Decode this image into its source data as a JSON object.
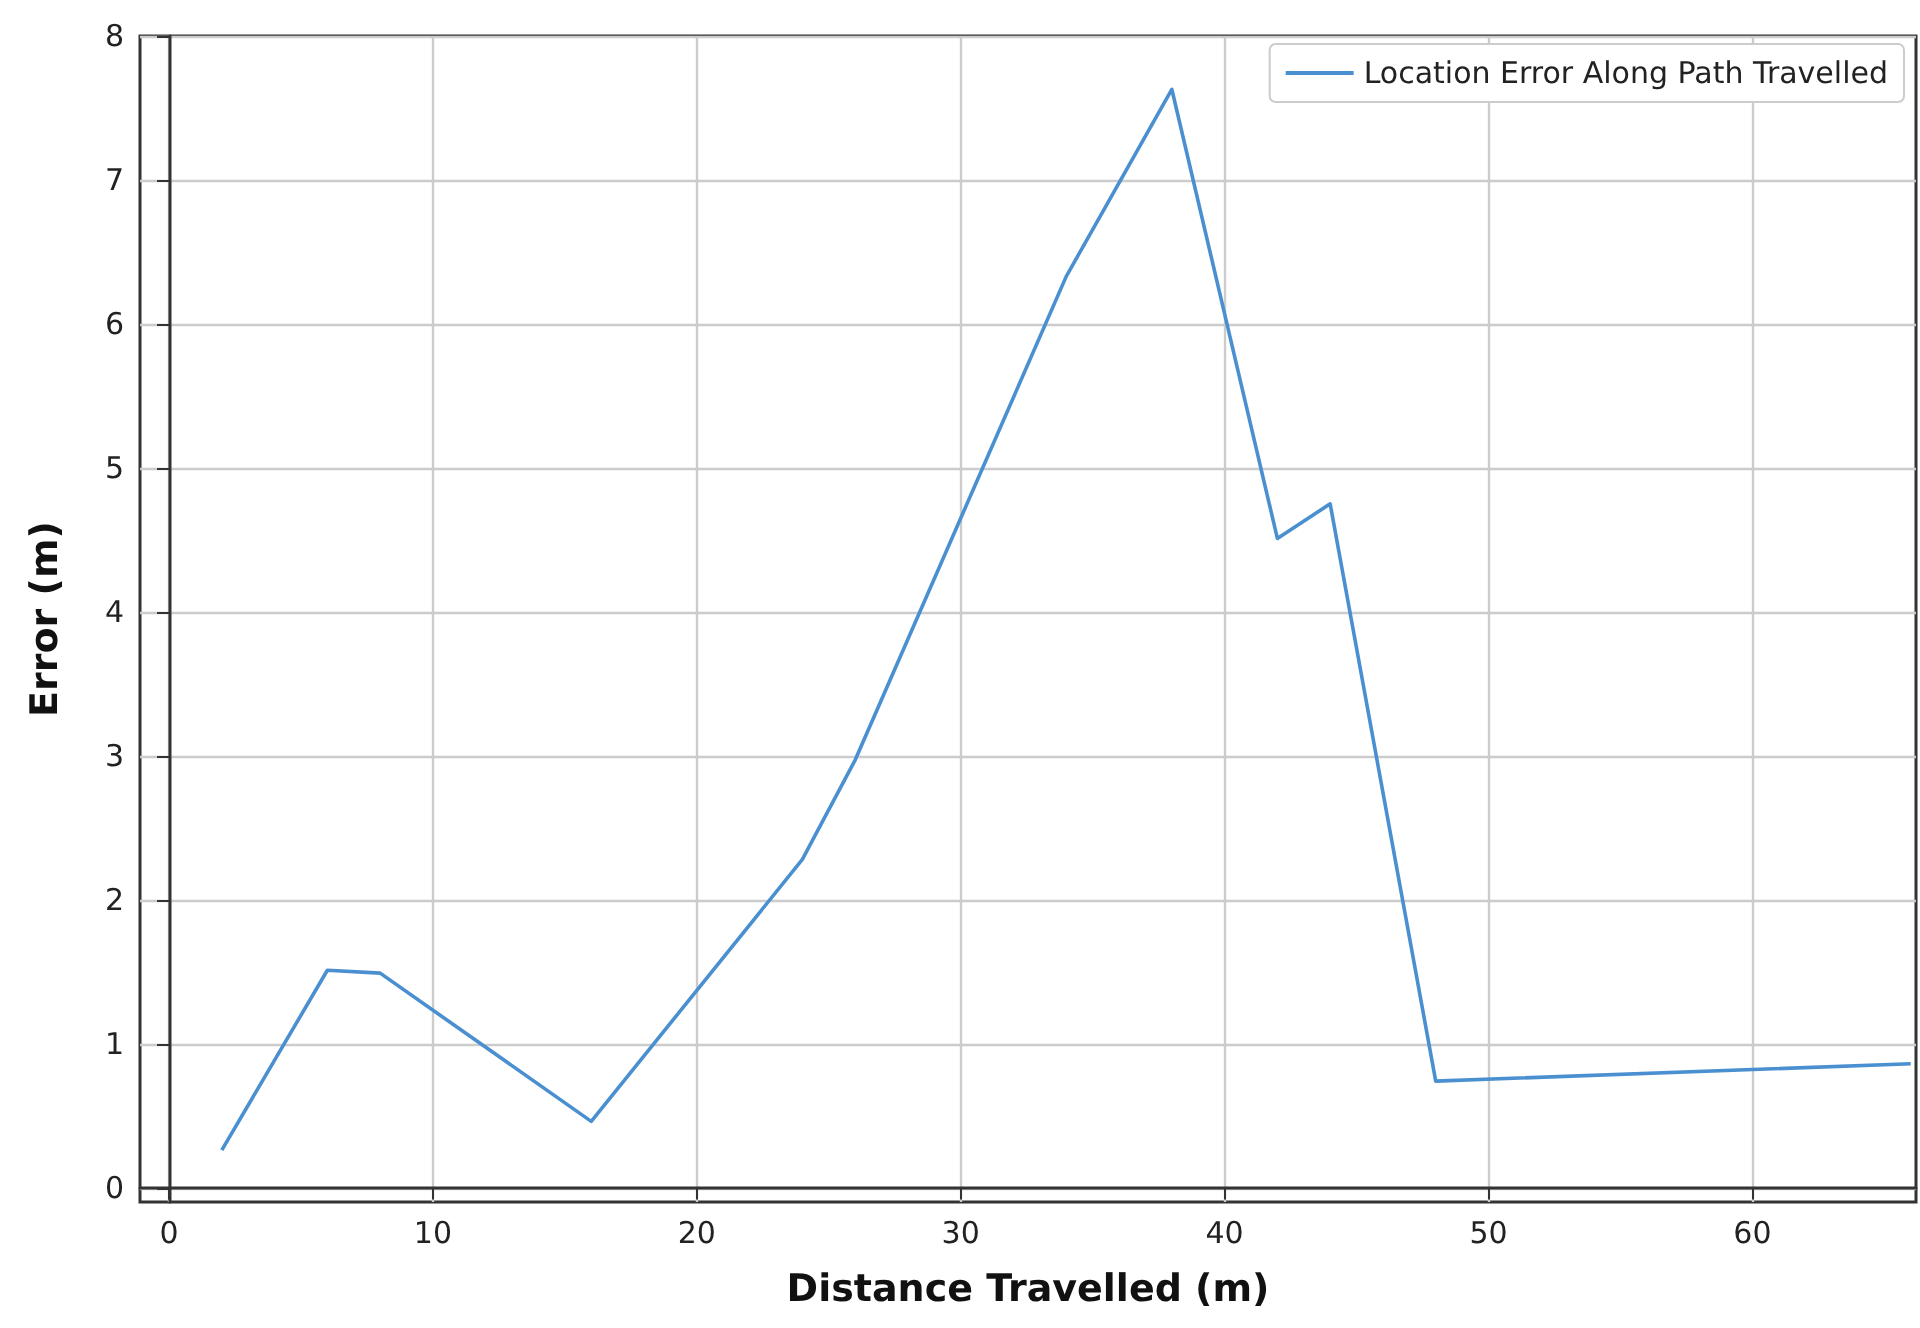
{
  "chart_data": {
    "type": "line",
    "xlabel": "Distance Travelled (m)",
    "ylabel": "Error (m)",
    "x": [
      2,
      6,
      8,
      16,
      24,
      26,
      34,
      38,
      42,
      44,
      48,
      66
    ],
    "series": [
      {
        "name": "Location Error Along Path Travelled",
        "color": "#4a90d0",
        "values": [
          0.26,
          1.51,
          1.49,
          0.46,
          2.28,
          2.97,
          6.33,
          7.63,
          4.51,
          4.75,
          0.74,
          0.86
        ]
      }
    ],
    "xlim": [
      -1.1,
      66.2
    ],
    "xticks": [
      0,
      10,
      20,
      30,
      40,
      50,
      60
    ],
    "ylim": [
      -0.1,
      8
    ],
    "yticks": [
      0,
      1,
      2,
      3,
      4,
      5,
      6,
      7,
      8
    ],
    "grid": true,
    "legend": "top right",
    "marker": "none",
    "line_style": "solid"
  }
}
